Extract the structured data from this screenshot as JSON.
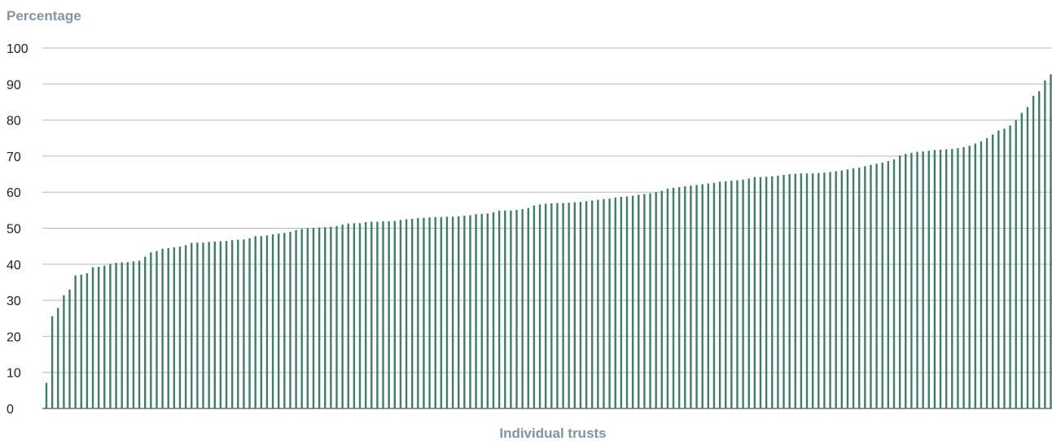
{
  "chart_data": {
    "type": "bar",
    "title": "",
    "ylabel": "Percentage",
    "xlabel": "Individual trusts",
    "ylim": [
      0,
      100
    ],
    "yticks": [
      0,
      10,
      20,
      30,
      40,
      50,
      60,
      70,
      80,
      90,
      100
    ],
    "grid": true,
    "legend": "none",
    "values": [
      7.1,
      25.6,
      27.9,
      31.4,
      33.0,
      36.9,
      37.1,
      37.5,
      39.2,
      39.3,
      39.6,
      40.1,
      40.4,
      40.5,
      40.6,
      40.8,
      41.0,
      42.1,
      43.3,
      43.7,
      44.3,
      44.5,
      44.7,
      44.9,
      45.3,
      45.9,
      46.0,
      46.0,
      46.2,
      46.3,
      46.4,
      46.5,
      46.7,
      46.8,
      46.9,
      47.2,
      47.8,
      47.8,
      48.0,
      48.3,
      48.5,
      48.7,
      49.0,
      49.5,
      49.8,
      50.0,
      50.1,
      50.2,
      50.3,
      50.4,
      50.6,
      51.0,
      51.3,
      51.4,
      51.4,
      51.7,
      51.8,
      51.8,
      51.9,
      51.9,
      52.0,
      52.3,
      52.5,
      52.6,
      52.8,
      52.9,
      53.0,
      53.1,
      53.1,
      53.2,
      53.2,
      53.3,
      53.5,
      53.6,
      53.9,
      54.0,
      54.1,
      54.4,
      54.9,
      54.9,
      54.9,
      55.1,
      55.3,
      55.6,
      56.3,
      56.6,
      56.8,
      56.9,
      57.0,
      57.0,
      57.1,
      57.2,
      57.3,
      57.5,
      57.7,
      57.9,
      58.1,
      58.2,
      58.5,
      58.7,
      58.8,
      59.0,
      59.3,
      59.5,
      59.7,
      60.0,
      60.4,
      61.0,
      61.2,
      61.4,
      61.6,
      61.8,
      62.0,
      62.2,
      62.4,
      62.6,
      62.9,
      63.0,
      63.2,
      63.3,
      63.5,
      63.8,
      64.2,
      64.2,
      64.3,
      64.4,
      64.6,
      64.8,
      65.0,
      65.1,
      65.2,
      65.2,
      65.2,
      65.3,
      65.4,
      65.6,
      65.8,
      66.0,
      66.3,
      66.6,
      66.8,
      67.2,
      67.6,
      67.9,
      68.2,
      68.6,
      69.1,
      70.2,
      70.6,
      70.9,
      71.2,
      71.3,
      71.5,
      71.7,
      71.8,
      71.9,
      72.0,
      72.2,
      72.5,
      72.9,
      73.5,
      74.1,
      75.0,
      76.0,
      77.1,
      77.6,
      78.5,
      80.0,
      82.0,
      83.6,
      86.7,
      88.0,
      91.0,
      92.7
    ]
  },
  "colors": {
    "bar": "#3d7f66",
    "grid": "#b9b9b9",
    "label": "#8094a8",
    "tick": "#222222"
  }
}
